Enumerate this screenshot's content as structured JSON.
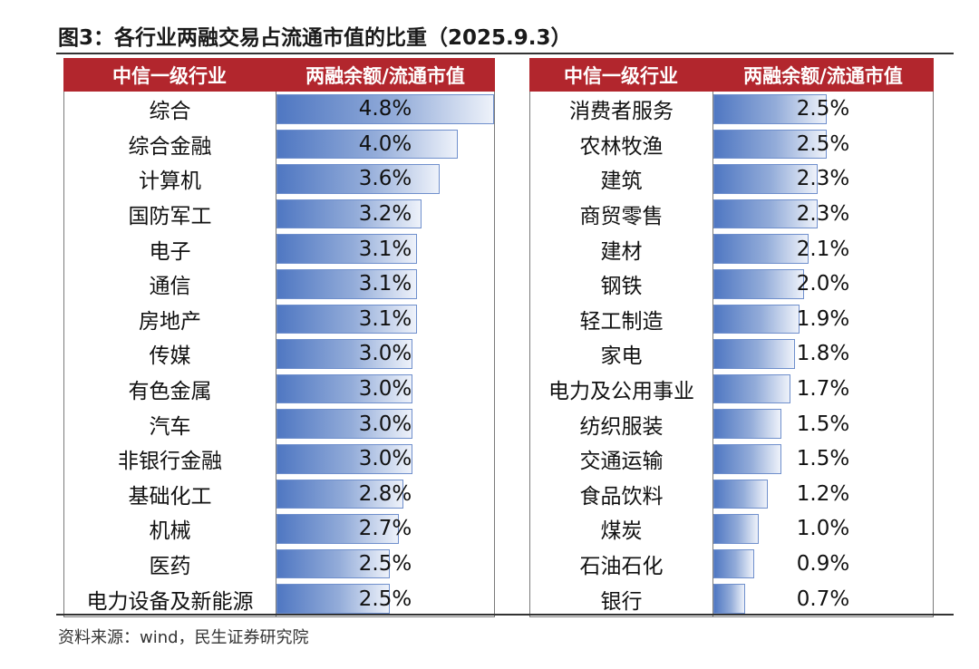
{
  "title": "图3：各行业两融交易占流通市值的比重（2025.9.3）",
  "source": "资料来源：wind，民生证券研究院",
  "headers": {
    "industry": "中信一级行业",
    "ratio": "两融余额/流通市值"
  },
  "colors": {
    "header_bg": "#b2262d",
    "bar": "#4f77c2"
  },
  "chart_data": {
    "type": "table",
    "columns": [
      "中信一级行业",
      "两融余额/流通市值"
    ],
    "left": [
      {
        "name": "综合",
        "label": "4.8%",
        "value": 4.8
      },
      {
        "name": "综合金融",
        "label": "4.0%",
        "value": 4.0
      },
      {
        "name": "计算机",
        "label": "3.6%",
        "value": 3.6
      },
      {
        "name": "国防军工",
        "label": "3.2%",
        "value": 3.2
      },
      {
        "name": "电子",
        "label": "3.1%",
        "value": 3.1
      },
      {
        "name": "通信",
        "label": "3.1%",
        "value": 3.1
      },
      {
        "name": "房地产",
        "label": "3.1%",
        "value": 3.1
      },
      {
        "name": "传媒",
        "label": "3.0%",
        "value": 3.0
      },
      {
        "name": "有色金属",
        "label": "3.0%",
        "value": 3.0
      },
      {
        "name": "汽车",
        "label": "3.0%",
        "value": 3.0
      },
      {
        "name": "非银行金融",
        "label": "3.0%",
        "value": 3.0
      },
      {
        "name": "基础化工",
        "label": "2.8%",
        "value": 2.8
      },
      {
        "name": "机械",
        "label": "2.7%",
        "value": 2.7
      },
      {
        "name": "医药",
        "label": "2.5%",
        "value": 2.5
      },
      {
        "name": "电力设备及新能源",
        "label": "2.5%",
        "value": 2.5
      }
    ],
    "right": [
      {
        "name": "消费者服务",
        "label": "2.5%",
        "value": 2.5
      },
      {
        "name": "农林牧渔",
        "label": "2.5%",
        "value": 2.5
      },
      {
        "name": "建筑",
        "label": "2.3%",
        "value": 2.3
      },
      {
        "name": "商贸零售",
        "label": "2.3%",
        "value": 2.3
      },
      {
        "name": "建材",
        "label": "2.1%",
        "value": 2.1
      },
      {
        "name": "钢铁",
        "label": "2.0%",
        "value": 2.0
      },
      {
        "name": "轻工制造",
        "label": "1.9%",
        "value": 1.9
      },
      {
        "name": "家电",
        "label": "1.8%",
        "value": 1.8
      },
      {
        "name": "电力及公用事业",
        "label": "1.7%",
        "value": 1.7
      },
      {
        "name": "纺织服装",
        "label": "1.5%",
        "value": 1.5
      },
      {
        "name": "交通运输",
        "label": "1.5%",
        "value": 1.5
      },
      {
        "name": "食品饮料",
        "label": "1.2%",
        "value": 1.2
      },
      {
        "name": "煤炭",
        "label": "1.0%",
        "value": 1.0
      },
      {
        "name": "石油石化",
        "label": "0.9%",
        "value": 0.9
      },
      {
        "name": "银行",
        "label": "0.7%",
        "value": 0.7
      }
    ]
  }
}
